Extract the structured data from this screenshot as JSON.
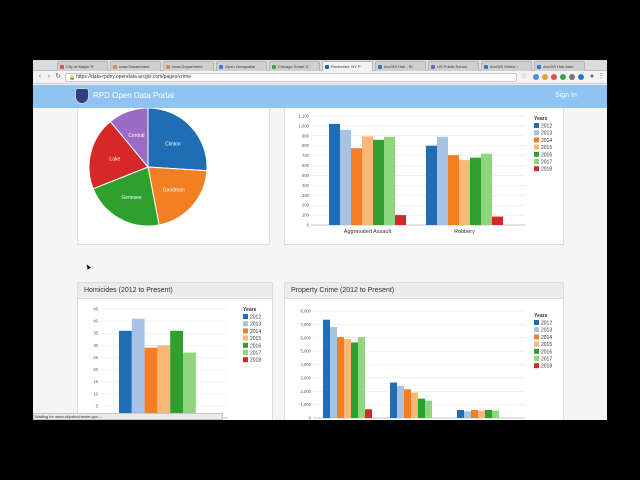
{
  "browser": {
    "tabs": [
      {
        "label": "City of Maple R",
        "color": "#d9534f"
      },
      {
        "label": "Iowa Department",
        "color": "#e08a2c"
      },
      {
        "label": "Iowa Department",
        "color": "#e08a2c"
      },
      {
        "label": "Open Geospatial",
        "color": "#3b7dd8"
      },
      {
        "label": "Chicago Smart D",
        "color": "#3ea34f"
      },
      {
        "label": "Rochester, NY P",
        "color": "#2f5fa8"
      },
      {
        "label": "ArcGIS Hub - Bi",
        "color": "#2b77c9"
      },
      {
        "label": "US Public Schoo",
        "color": "#7a5bd0"
      },
      {
        "label": "ArcGIS Online ‹",
        "color": "#2b77c9"
      },
      {
        "label": "ArcGIS Hub Adm",
        "color": "#2b77c9"
      }
    ],
    "active_tab": 5,
    "url": "https://data-rpdny.opendata.arcgis.com/pages/crime",
    "status_text": "Waiting for www.cityofrochester.gov..."
  },
  "portal": {
    "title": "RPD Open Data Portal",
    "signin": "Sign In"
  },
  "chart_data": [
    {
      "type": "pie",
      "categories": [
        "Clinton",
        "Goodman",
        "Genesee",
        "Lake",
        "Central"
      ],
      "values": [
        26,
        21,
        22,
        20,
        11
      ],
      "colors": [
        "#1f6db5",
        "#f28022",
        "#2ea02e",
        "#d62828",
        "#9a6cc6"
      ]
    },
    {
      "type": "bar",
      "categories": [
        "Aggravated Assault",
        "Robbery"
      ],
      "legend_title": "Years",
      "series": [
        {
          "name": "2012",
          "values": [
            1020,
            800
          ],
          "color": "#1f6db5"
        },
        {
          "name": "2013",
          "values": [
            960,
            890
          ],
          "color": "#a6c3e6"
        },
        {
          "name": "2014",
          "values": [
            775,
            705
          ],
          "color": "#f28022"
        },
        {
          "name": "2015",
          "values": [
            895,
            655
          ],
          "color": "#f9b878"
        },
        {
          "name": "2016",
          "values": [
            860,
            680
          ],
          "color": "#2ea02e"
        },
        {
          "name": "2017",
          "values": [
            890,
            720
          ],
          "color": "#8fd67f"
        },
        {
          "name": "2018",
          "values": [
            100,
            85
          ],
          "color": "#d62828"
        }
      ],
      "ylim": [
        0,
        1100
      ],
      "yticks": [
        "0",
        "100",
        "200",
        "300",
        "400",
        "500",
        "600",
        "700",
        "800",
        "900",
        "1,000",
        "1,100"
      ]
    },
    {
      "type": "bar",
      "title": "Homicides (2012 to Present)",
      "categories": [
        ""
      ],
      "legend_title": "Years",
      "series": [
        {
          "name": "2012",
          "values": [
            36
          ],
          "color": "#1f6db5"
        },
        {
          "name": "2013",
          "values": [
            41
          ],
          "color": "#a6c3e6"
        },
        {
          "name": "2014",
          "values": [
            29
          ],
          "color": "#f28022"
        },
        {
          "name": "2015",
          "values": [
            30
          ],
          "color": "#f9b878"
        },
        {
          "name": "2016",
          "values": [
            36
          ],
          "color": "#2ea02e"
        },
        {
          "name": "2017",
          "values": [
            27
          ],
          "color": "#8fd67f"
        },
        {
          "name": "2018",
          "values": [
            0
          ],
          "color": "#d62828"
        }
      ],
      "ylim": [
        0,
        45
      ],
      "yticks": [
        "0",
        "5",
        "10",
        "15",
        "20",
        "25",
        "30",
        "35",
        "40",
        "45"
      ]
    },
    {
      "type": "bar",
      "title": "Property Crime (2012 to Present)",
      "categories": [
        "",
        "",
        ""
      ],
      "legend_title": "Years",
      "series": [
        {
          "name": "2012",
          "values": [
            7350,
            2650,
            600
          ],
          "color": "#1f6db5"
        },
        {
          "name": "2013",
          "values": [
            6800,
            2400,
            500
          ],
          "color": "#a6c3e6"
        },
        {
          "name": "2014",
          "values": [
            6050,
            2150,
            600
          ],
          "color": "#f28022"
        },
        {
          "name": "2015",
          "values": [
            5900,
            1900,
            550
          ],
          "color": "#f9b878"
        },
        {
          "name": "2016",
          "values": [
            5650,
            1450,
            600
          ],
          "color": "#2ea02e"
        },
        {
          "name": "2017",
          "values": [
            6050,
            1300,
            550
          ],
          "color": "#8fd67f"
        },
        {
          "name": "2018",
          "values": [
            650,
            0,
            0
          ],
          "color": "#d62828"
        }
      ],
      "ylim": [
        0,
        8000
      ],
      "yticks": [
        "0",
        "1,000",
        "2,000",
        "3,000",
        "4,000",
        "5,000",
        "6,000",
        "7,000",
        "8,000"
      ]
    }
  ]
}
